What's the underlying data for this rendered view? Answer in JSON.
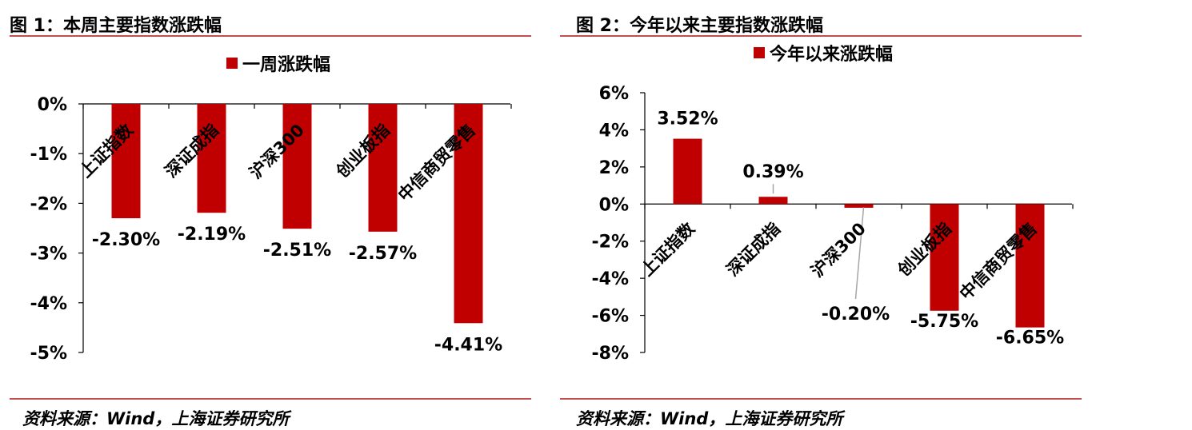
{
  "figures": [
    {
      "title": "图 1：本周主要指数涨跌幅",
      "source": "资料来源：Wind，上海证券研究所"
    },
    {
      "title": "图 2：今年以来主要指数涨跌幅",
      "source": "资料来源：Wind，上海证券研究所"
    }
  ],
  "chart_data": [
    {
      "type": "bar",
      "categories": [
        "上证指数",
        "深证成指",
        "沪深300",
        "创业板指",
        "中信商贸零售"
      ],
      "series": [
        {
          "name": "一周涨跌幅",
          "values": [
            -2.3,
            -2.19,
            -2.51,
            -2.57,
            -4.41
          ],
          "color": "#c00000"
        }
      ],
      "data_labels": [
        "-2.30%",
        "-2.19%",
        "-2.51%",
        "-2.57%",
        "-4.41%"
      ],
      "y_ticks": [
        "0%",
        "-1%",
        "-2%",
        "-3%",
        "-4%",
        "-5%"
      ],
      "ylim": [
        -5,
        0
      ],
      "legend_position": "top-center",
      "grid": false
    },
    {
      "type": "bar",
      "categories": [
        "上证指数",
        "深证成指",
        "沪深300",
        "创业板指",
        "中信商贸零售"
      ],
      "series": [
        {
          "name": "今年以来涨跌幅",
          "values": [
            3.52,
            0.39,
            -0.2,
            -5.75,
            -6.65
          ],
          "color": "#c00000"
        }
      ],
      "data_labels": [
        "3.52%",
        "0.39%",
        "-0.20%",
        "-5.75%",
        "-6.65%"
      ],
      "y_ticks": [
        "6%",
        "4%",
        "2%",
        "0%",
        "-2%",
        "-4%",
        "-6%",
        "-8%"
      ],
      "ylim": [
        -8,
        6
      ],
      "legend_position": "top-center",
      "grid": false
    }
  ],
  "colors": {
    "bar": "#c00000",
    "rule": "#c0504d",
    "axis": "#000000",
    "leader": "#a6a6a6"
  }
}
